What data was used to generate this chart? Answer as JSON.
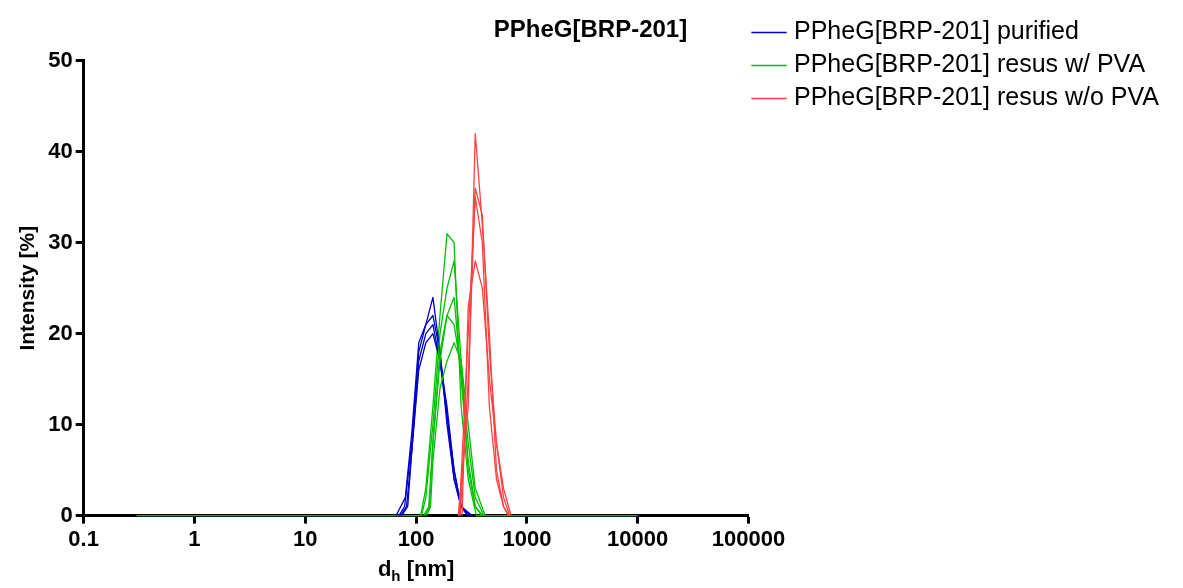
{
  "chart_data": {
    "type": "line",
    "title": "PPheG[BRP-201]",
    "xlabel": "d$_{h}$ [nm]",
    "ylabel": "Intensity [%]",
    "log": "x",
    "grid": false,
    "legend": "top right",
    "marker": "none",
    "line_style": "solid",
    "xlim": [
      0.1,
      100000
    ],
    "xticks": [
      0.1,
      1,
      10,
      100,
      1000,
      10000,
      100000
    ],
    "ylim": [
      0,
      50
    ],
    "yticks": [
      0,
      10,
      20,
      30,
      40,
      50
    ],
    "series": [
      {
        "name": "PPheG[BRP-201] purified",
        "color": "#0000cc",
        "x": [
          66,
          80,
          91.3,
          105.7,
          122.4,
          141.8,
          164.2,
          190.1,
          220.2,
          255,
          290
        ],
        "values": [
          0,
          2,
          9,
          19,
          21,
          24,
          18,
          10,
          4,
          1,
          0
        ]
      },
      {
        "color": "#0000cc",
        "x": [
          70,
          78.8,
          91.3,
          105.7,
          122.4,
          141.8,
          164.2,
          190.1,
          220.2,
          255,
          300
        ],
        "values": [
          0,
          1,
          8,
          18,
          21,
          22,
          18,
          11,
          4,
          1,
          0
        ]
      },
      {
        "color": "#0000cc",
        "x": [
          72,
          82,
          91.3,
          105.7,
          122.4,
          141.8,
          164.2,
          190.1,
          220.2,
          255,
          310
        ],
        "values": [
          0,
          1,
          7,
          17,
          20,
          21,
          17,
          11,
          5,
          1,
          0
        ]
      },
      {
        "color": "#0000cc",
        "x": [
          74,
          84,
          91.3,
          105.7,
          122.4,
          141.8,
          164.2,
          190.1,
          220.2,
          255,
          320
        ],
        "values": [
          0,
          1,
          7,
          16,
          19,
          20,
          17,
          12,
          5,
          1,
          0
        ]
      },
      {
        "name": "PPheG[BRP-201] resus w/ PVA",
        "color": "#00c000",
        "x": [
          0.3,
          110,
          122.4,
          141.8,
          164.2,
          190.1,
          220.2,
          255,
          295.3,
          350,
          10000
        ],
        "values": [
          0,
          0,
          3,
          12,
          22,
          31,
          30,
          12,
          4,
          0,
          0
        ]
      },
      {
        "color": "#00c000",
        "x": [
          112,
          122.4,
          141.8,
          164.2,
          190.1,
          220.2,
          255,
          295.3,
          342,
          390
        ],
        "values": [
          0,
          2,
          10,
          20,
          25,
          28,
          17,
          5,
          1,
          0
        ]
      },
      {
        "color": "#00c000",
        "x": [
          117,
          130,
          141.8,
          164.2,
          190.1,
          220.2,
          255,
          295.3,
          342,
          400
        ],
        "values": [
          0,
          1,
          8,
          18,
          22,
          24,
          15,
          6,
          1,
          0
        ]
      },
      {
        "color": "#00c000",
        "x": [
          120,
          132,
          141.8,
          164.2,
          190.1,
          220.2,
          255,
          295.3,
          342,
          410
        ],
        "values": [
          0,
          1,
          8,
          17,
          22,
          21,
          16,
          8,
          2,
          0
        ]
      },
      {
        "color": "#00c000",
        "x": [
          125,
          135,
          141.8,
          164.2,
          190.1,
          220.2,
          255,
          295.3,
          342,
          420
        ],
        "values": [
          0,
          1,
          6,
          14,
          17,
          19,
          17,
          10,
          3,
          0
        ]
      },
      {
        "name": "PPheG[BRP-201] resus w/o PVA",
        "color": "#ff4040",
        "x": [
          240,
          295.3,
          342,
          396.1,
          458.7,
          531.2,
          615.1,
          680
        ],
        "values": [
          0,
          12,
          42,
          32,
          20,
          5,
          1,
          0
        ]
      },
      {
        "color": "#ff4040",
        "x": [
          250,
          295.3,
          342,
          396.1,
          458.7,
          531.2,
          615.1,
          700
        ],
        "values": [
          0,
          15,
          36,
          33,
          18,
          8,
          2,
          0
        ]
      },
      {
        "color": "#ff4040",
        "x": [
          260,
          295.3,
          342,
          396.1,
          458.7,
          531.2,
          615.1,
          720
        ],
        "values": [
          0,
          23,
          28,
          25,
          15,
          8,
          3,
          0
        ]
      },
      {
        "color": "#ff4040",
        "x": [
          245,
          295.3,
          342,
          396.1,
          458.7,
          531.2,
          615.1,
          690
        ],
        "values": [
          0,
          20,
          35,
          30,
          12,
          4,
          1,
          0
        ]
      }
    ]
  }
}
